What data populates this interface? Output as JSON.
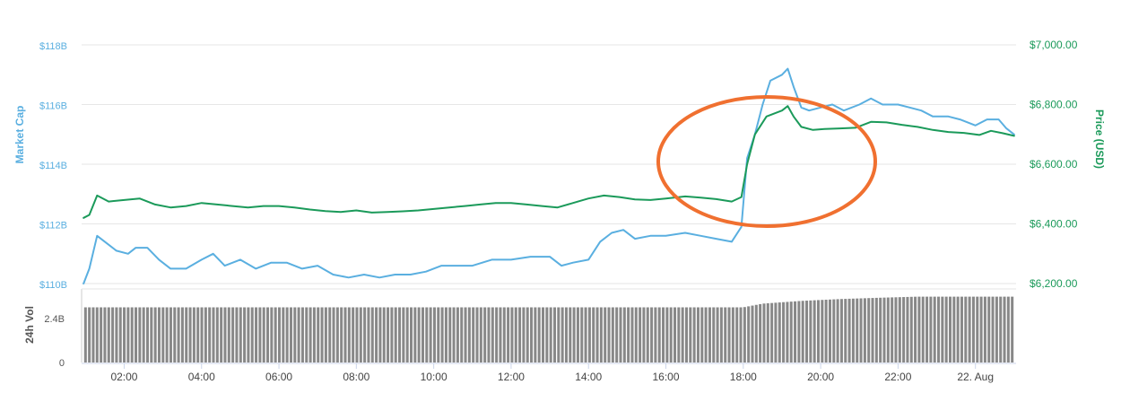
{
  "chart_data": {
    "type": "line",
    "left_axis": {
      "label": "Market Cap",
      "ticks": [
        "$118B",
        "$116B",
        "$114B",
        "$112B",
        "$110B"
      ],
      "tick_values": [
        118,
        116,
        114,
        112,
        110
      ],
      "range": [
        110,
        118
      ],
      "color": "#5aafe0"
    },
    "right_axis": {
      "label": "Price (USD)",
      "ticks": [
        "$7,000.00",
        "$6,800.00",
        "$6,600.00",
        "$6,400.00",
        "$6,200.00"
      ],
      "tick_values": [
        7000,
        6800,
        6600,
        6400,
        6200
      ],
      "range": [
        6200,
        7000
      ],
      "color": "#1b9a5a"
    },
    "volume_axis": {
      "label": "24h Vol",
      "ticks": [
        "2.4B",
        "0"
      ],
      "tick_values": [
        2.4,
        0
      ],
      "range": [
        0,
        4.0
      ]
    },
    "x_axis": {
      "tick_labels": [
        "02:00",
        "04:00",
        "06:00",
        "08:00",
        "10:00",
        "12:00",
        "14:00",
        "16:00",
        "18:00",
        "20:00",
        "22:00",
        "22. Aug"
      ],
      "tick_hours": [
        2,
        4,
        6,
        8,
        10,
        12,
        14,
        16,
        18,
        20,
        22,
        24
      ],
      "range_hours": [
        0.9,
        25.05
      ]
    },
    "series": [
      {
        "key": "market_cap",
        "axis": "left",
        "color": "#5aafe0",
        "points": [
          [
            0.95,
            110.0
          ],
          [
            1.1,
            110.5
          ],
          [
            1.3,
            111.6
          ],
          [
            1.5,
            111.4
          ],
          [
            1.8,
            111.1
          ],
          [
            2.1,
            111.0
          ],
          [
            2.3,
            111.2
          ],
          [
            2.6,
            111.2
          ],
          [
            2.9,
            110.8
          ],
          [
            3.2,
            110.5
          ],
          [
            3.6,
            110.5
          ],
          [
            4.0,
            110.8
          ],
          [
            4.3,
            111.0
          ],
          [
            4.6,
            110.6
          ],
          [
            5.0,
            110.8
          ],
          [
            5.4,
            110.5
          ],
          [
            5.8,
            110.7
          ],
          [
            6.2,
            110.7
          ],
          [
            6.6,
            110.5
          ],
          [
            7.0,
            110.6
          ],
          [
            7.4,
            110.3
          ],
          [
            7.8,
            110.2
          ],
          [
            8.2,
            110.3
          ],
          [
            8.6,
            110.2
          ],
          [
            9.0,
            110.3
          ],
          [
            9.4,
            110.3
          ],
          [
            9.8,
            110.4
          ],
          [
            10.2,
            110.6
          ],
          [
            10.6,
            110.6
          ],
          [
            11.0,
            110.6
          ],
          [
            11.5,
            110.8
          ],
          [
            12.0,
            110.8
          ],
          [
            12.5,
            110.9
          ],
          [
            13.0,
            110.9
          ],
          [
            13.3,
            110.6
          ],
          [
            13.6,
            110.7
          ],
          [
            14.0,
            110.8
          ],
          [
            14.3,
            111.4
          ],
          [
            14.6,
            111.7
          ],
          [
            14.9,
            111.8
          ],
          [
            15.2,
            111.5
          ],
          [
            15.6,
            111.6
          ],
          [
            16.0,
            111.6
          ],
          [
            16.5,
            111.7
          ],
          [
            16.9,
            111.6
          ],
          [
            17.3,
            111.5
          ],
          [
            17.7,
            111.4
          ],
          [
            17.95,
            111.9
          ],
          [
            18.1,
            114.2
          ],
          [
            18.3,
            115.0
          ],
          [
            18.5,
            116.0
          ],
          [
            18.7,
            116.8
          ],
          [
            19.0,
            117.0
          ],
          [
            19.15,
            117.2
          ],
          [
            19.3,
            116.6
          ],
          [
            19.5,
            115.9
          ],
          [
            19.7,
            115.8
          ],
          [
            20.0,
            115.9
          ],
          [
            20.3,
            116.0
          ],
          [
            20.6,
            115.8
          ],
          [
            21.0,
            116.0
          ],
          [
            21.3,
            116.2
          ],
          [
            21.6,
            116.0
          ],
          [
            22.0,
            116.0
          ],
          [
            22.3,
            115.9
          ],
          [
            22.6,
            115.8
          ],
          [
            22.9,
            115.6
          ],
          [
            23.3,
            115.6
          ],
          [
            23.6,
            115.5
          ],
          [
            24.0,
            115.3
          ],
          [
            24.3,
            115.5
          ],
          [
            24.6,
            115.5
          ],
          [
            24.8,
            115.2
          ],
          [
            25.0,
            115.0
          ]
        ]
      },
      {
        "key": "price",
        "axis": "right",
        "color": "#1b9a5a",
        "points": [
          [
            0.95,
            6420
          ],
          [
            1.1,
            6430
          ],
          [
            1.3,
            6495
          ],
          [
            1.6,
            6475
          ],
          [
            2.0,
            6480
          ],
          [
            2.4,
            6485
          ],
          [
            2.8,
            6465
          ],
          [
            3.2,
            6455
          ],
          [
            3.6,
            6460
          ],
          [
            4.0,
            6470
          ],
          [
            4.4,
            6465
          ],
          [
            4.8,
            6460
          ],
          [
            5.2,
            6455
          ],
          [
            5.6,
            6460
          ],
          [
            6.0,
            6460
          ],
          [
            6.4,
            6455
          ],
          [
            6.8,
            6448
          ],
          [
            7.2,
            6443
          ],
          [
            7.6,
            6440
          ],
          [
            8.0,
            6445
          ],
          [
            8.4,
            6438
          ],
          [
            8.8,
            6440
          ],
          [
            9.2,
            6442
          ],
          [
            9.6,
            6445
          ],
          [
            10.0,
            6450
          ],
          [
            10.4,
            6455
          ],
          [
            10.8,
            6460
          ],
          [
            11.2,
            6465
          ],
          [
            11.6,
            6470
          ],
          [
            12.0,
            6470
          ],
          [
            12.4,
            6465
          ],
          [
            12.8,
            6460
          ],
          [
            13.2,
            6455
          ],
          [
            13.6,
            6470
          ],
          [
            14.0,
            6485
          ],
          [
            14.4,
            6495
          ],
          [
            14.8,
            6490
          ],
          [
            15.2,
            6482
          ],
          [
            15.6,
            6480
          ],
          [
            16.0,
            6485
          ],
          [
            16.5,
            6492
          ],
          [
            16.9,
            6488
          ],
          [
            17.3,
            6483
          ],
          [
            17.7,
            6475
          ],
          [
            17.95,
            6490
          ],
          [
            18.1,
            6600
          ],
          [
            18.3,
            6700
          ],
          [
            18.6,
            6760
          ],
          [
            19.0,
            6780
          ],
          [
            19.15,
            6795
          ],
          [
            19.3,
            6760
          ],
          [
            19.5,
            6725
          ],
          [
            19.8,
            6715
          ],
          [
            20.1,
            6718
          ],
          [
            20.5,
            6720
          ],
          [
            20.9,
            6722
          ],
          [
            21.3,
            6742
          ],
          [
            21.7,
            6740
          ],
          [
            22.1,
            6732
          ],
          [
            22.5,
            6725
          ],
          [
            22.9,
            6715
          ],
          [
            23.3,
            6708
          ],
          [
            23.7,
            6705
          ],
          [
            24.1,
            6698
          ],
          [
            24.4,
            6712
          ],
          [
            24.7,
            6704
          ],
          [
            25.0,
            6695
          ]
        ]
      },
      {
        "key": "volume",
        "axis": "volume",
        "type": "bar",
        "color": "#888888",
        "points": [
          [
            0.95,
            3.0
          ],
          [
            18.0,
            3.0
          ],
          [
            18.5,
            3.2
          ],
          [
            19.5,
            3.35
          ],
          [
            20.5,
            3.45
          ],
          [
            21.5,
            3.52
          ],
          [
            22.5,
            3.58
          ],
          [
            25.0,
            3.58
          ]
        ]
      }
    ],
    "annotation": {
      "type": "ellipse",
      "color": "#f07030"
    }
  }
}
